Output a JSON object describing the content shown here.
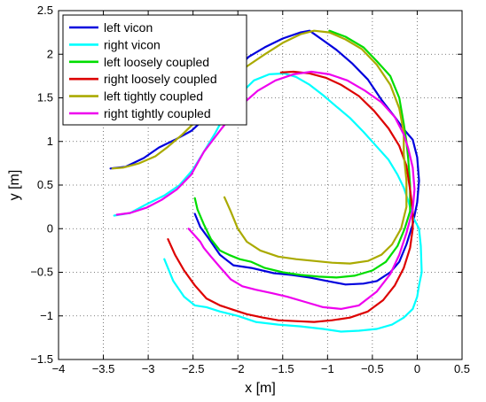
{
  "chart_data": {
    "type": "line",
    "title": "",
    "xlabel": "x [m]",
    "ylabel": "y [m]",
    "xlim": [
      -4,
      0.5
    ],
    "ylim": [
      -1.5,
      2.5
    ],
    "xticks": [
      -4,
      -3.5,
      -3,
      -2.5,
      -2,
      -1.5,
      -1,
      -0.5,
      0,
      0.5
    ],
    "yticks": [
      -1.5,
      -1,
      -0.5,
      0,
      0.5,
      1,
      1.5,
      2,
      2.5
    ],
    "xtick_labels": [
      "−4",
      "−3.5",
      "−3",
      "−2.5",
      "−2",
      "−1.5",
      "−1",
      "−0.5",
      "0",
      "0.5"
    ],
    "ytick_labels": [
      "−1.5",
      "−1",
      "−0.5",
      "0",
      "0.5",
      "1",
      "1.5",
      "2",
      "2.5"
    ],
    "grid": true,
    "legend_position": "top-left",
    "series": [
      {
        "name": "left vicon",
        "color": "#0000dd",
        "x": [
          -3.42,
          -3.25,
          -3.05,
          -2.88,
          -2.7,
          -2.52,
          -2.35,
          -2.2,
          -2.05,
          -1.88,
          -1.7,
          -1.5,
          -1.3,
          -1.2,
          -1.05,
          -0.9,
          -0.72,
          -0.55,
          -0.4,
          -0.25,
          -0.15,
          -0.05,
          0.0,
          0.02,
          0.0,
          -0.05,
          -0.12,
          -0.2,
          -0.3,
          -0.45,
          -0.6,
          -0.8,
          -1.0,
          -1.2,
          -1.4,
          -1.6,
          -1.85,
          -2.05,
          -2.2,
          -2.32,
          -2.42,
          -2.48
        ],
        "y": [
          0.69,
          0.71,
          0.81,
          0.93,
          1.02,
          1.12,
          1.28,
          1.55,
          1.8,
          1.97,
          2.08,
          2.18,
          2.25,
          2.27,
          2.16,
          2.05,
          1.89,
          1.71,
          1.48,
          1.28,
          1.14,
          1.02,
          0.82,
          0.55,
          0.3,
          0.05,
          -0.18,
          -0.38,
          -0.5,
          -0.6,
          -0.63,
          -0.64,
          -0.6,
          -0.56,
          -0.53,
          -0.51,
          -0.45,
          -0.42,
          -0.3,
          -0.12,
          0.02,
          0.17
        ]
      },
      {
        "name": "right vicon",
        "color": "#00ffff",
        "x": [
          -3.38,
          -3.2,
          -3.02,
          -2.82,
          -2.65,
          -2.5,
          -2.38,
          -2.25,
          -2.12,
          -1.97,
          -1.82,
          -1.65,
          -1.48,
          -1.35,
          -1.2,
          -1.05,
          -0.9,
          -0.75,
          -0.6,
          -0.45,
          -0.32,
          -0.22,
          -0.15,
          -0.1,
          -0.05,
          0.02,
          0.04,
          0.05,
          0.02,
          0.0,
          -0.05,
          -0.15,
          -0.28,
          -0.45,
          -0.65,
          -0.85,
          -1.05,
          -1.3,
          -1.55,
          -1.8,
          -2.0,
          -2.2,
          -2.35,
          -2.48,
          -2.6,
          -2.72,
          -2.82
        ],
        "y": [
          0.15,
          0.18,
          0.28,
          0.38,
          0.5,
          0.68,
          0.88,
          1.1,
          1.35,
          1.55,
          1.7,
          1.77,
          1.78,
          1.74,
          1.65,
          1.53,
          1.4,
          1.27,
          1.11,
          0.94,
          0.79,
          0.62,
          0.47,
          0.32,
          0.14,
          0.0,
          -0.2,
          -0.5,
          -0.65,
          -0.78,
          -0.92,
          -1.02,
          -1.1,
          -1.15,
          -1.17,
          -1.18,
          -1.15,
          -1.12,
          -1.1,
          -1.07,
          -1.0,
          -0.95,
          -0.9,
          -0.88,
          -0.78,
          -0.6,
          -0.35
        ]
      },
      {
        "name": "left loosely coupled",
        "color": "#00dd00",
        "x": [
          -2.48,
          -2.45,
          -2.38,
          -2.3,
          -2.2,
          -2.1,
          -1.98,
          -1.85,
          -1.7,
          -1.5,
          -1.3,
          -1.1,
          -0.9,
          -0.7,
          -0.5,
          -0.35,
          -0.22,
          -0.14,
          -0.08,
          -0.08,
          -0.1,
          -0.12,
          -0.15,
          -0.2,
          -0.3,
          -0.45,
          -0.6,
          -0.8,
          -0.98
        ],
        "y": [
          0.35,
          0.22,
          0.05,
          -0.12,
          -0.25,
          -0.3,
          -0.35,
          -0.38,
          -0.45,
          -0.5,
          -0.53,
          -0.55,
          -0.56,
          -0.54,
          -0.48,
          -0.38,
          -0.2,
          0.0,
          0.2,
          0.5,
          0.8,
          1.0,
          1.2,
          1.5,
          1.75,
          1.92,
          2.08,
          2.2,
          2.27
        ]
      },
      {
        "name": "right loosely coupled",
        "color": "#dd0000",
        "x": [
          -2.78,
          -2.7,
          -2.6,
          -2.48,
          -2.35,
          -2.2,
          -2.05,
          -1.9,
          -1.72,
          -1.55,
          -1.35,
          -1.15,
          -0.95,
          -0.75,
          -0.55,
          -0.38,
          -0.25,
          -0.15,
          -0.08,
          -0.05,
          -0.05,
          -0.08,
          -0.12,
          -0.2,
          -0.32,
          -0.48,
          -0.65,
          -0.85,
          -1.02,
          -1.2,
          -1.38,
          -1.52
        ],
        "y": [
          -0.12,
          -0.3,
          -0.48,
          -0.65,
          -0.8,
          -0.88,
          -0.93,
          -0.98,
          -1.02,
          -1.05,
          -1.06,
          -1.07,
          -1.05,
          -1.02,
          -0.95,
          -0.82,
          -0.65,
          -0.45,
          -0.22,
          0.0,
          0.2,
          0.45,
          0.72,
          0.95,
          1.15,
          1.35,
          1.52,
          1.65,
          1.73,
          1.78,
          1.8,
          1.79
        ]
      },
      {
        "name": "left tightly coupled",
        "color": "#aaaa00",
        "x": [
          -2.15,
          -2.08,
          -2.0,
          -1.9,
          -1.75,
          -1.55,
          -1.35,
          -1.15,
          -0.95,
          -0.75,
          -0.55,
          -0.4,
          -0.28,
          -0.18,
          -0.12,
          -0.12,
          -0.15,
          -0.15,
          -0.2,
          -0.3,
          -0.45,
          -0.62,
          -0.8,
          -0.98,
          -1.15,
          -1.3,
          -1.5,
          -1.7,
          -1.9,
          -2.1,
          -2.3,
          -2.48,
          -2.62,
          -2.78,
          -2.92,
          -3.1,
          -3.28,
          -3.4
        ],
        "y": [
          0.36,
          0.2,
          0.0,
          -0.15,
          -0.25,
          -0.32,
          -0.35,
          -0.37,
          -0.39,
          -0.4,
          -0.37,
          -0.3,
          -0.18,
          0.0,
          0.25,
          0.55,
          0.85,
          1.1,
          1.38,
          1.65,
          1.88,
          2.06,
          2.17,
          2.25,
          2.27,
          2.23,
          2.13,
          2.0,
          1.86,
          1.68,
          1.45,
          1.22,
          1.08,
          0.94,
          0.83,
          0.75,
          0.7,
          0.69
        ]
      },
      {
        "name": "right tightly coupled",
        "color": "#ee00ee",
        "x": [
          -2.55,
          -2.48,
          -2.42,
          -2.38,
          -2.3,
          -2.2,
          -2.08,
          -1.95,
          -1.8,
          -1.62,
          -1.45,
          -1.25,
          -1.05,
          -0.85,
          -0.65,
          -0.45,
          -0.3,
          -0.2,
          -0.12,
          -0.05,
          -0.03,
          -0.05,
          -0.1,
          -0.15,
          -0.25,
          -0.4,
          -0.58,
          -0.78,
          -0.98,
          -1.18,
          -1.38,
          -1.58,
          -1.78,
          -1.98,
          -2.18,
          -2.38,
          -2.52,
          -2.68,
          -2.85,
          -3.02,
          -3.2,
          -3.35
        ],
        "y": [
          0.0,
          -0.08,
          -0.15,
          -0.22,
          -0.32,
          -0.44,
          -0.58,
          -0.66,
          -0.7,
          -0.74,
          -0.78,
          -0.84,
          -0.9,
          -0.92,
          -0.88,
          -0.72,
          -0.52,
          -0.3,
          -0.05,
          0.22,
          0.45,
          0.7,
          0.92,
          1.08,
          1.28,
          1.45,
          1.58,
          1.7,
          1.77,
          1.8,
          1.77,
          1.7,
          1.58,
          1.4,
          1.15,
          0.88,
          0.62,
          0.45,
          0.33,
          0.24,
          0.18,
          0.16
        ]
      }
    ]
  }
}
